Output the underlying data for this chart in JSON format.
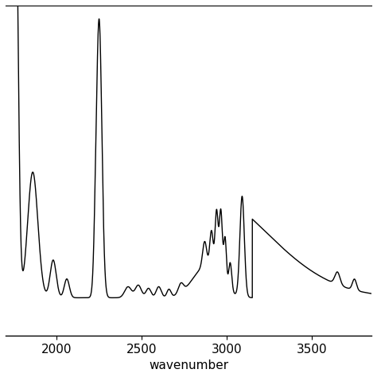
{
  "title": "",
  "xlabel": "wavenumber",
  "ylabel": "",
  "xlim": [
    1700,
    3850
  ],
  "ylim": [
    0.0,
    1.05
  ],
  "xticks": [
    2000,
    2500,
    3000,
    3500
  ],
  "line_color": "#000000",
  "background_color": "#ffffff",
  "linewidth": 1.0
}
